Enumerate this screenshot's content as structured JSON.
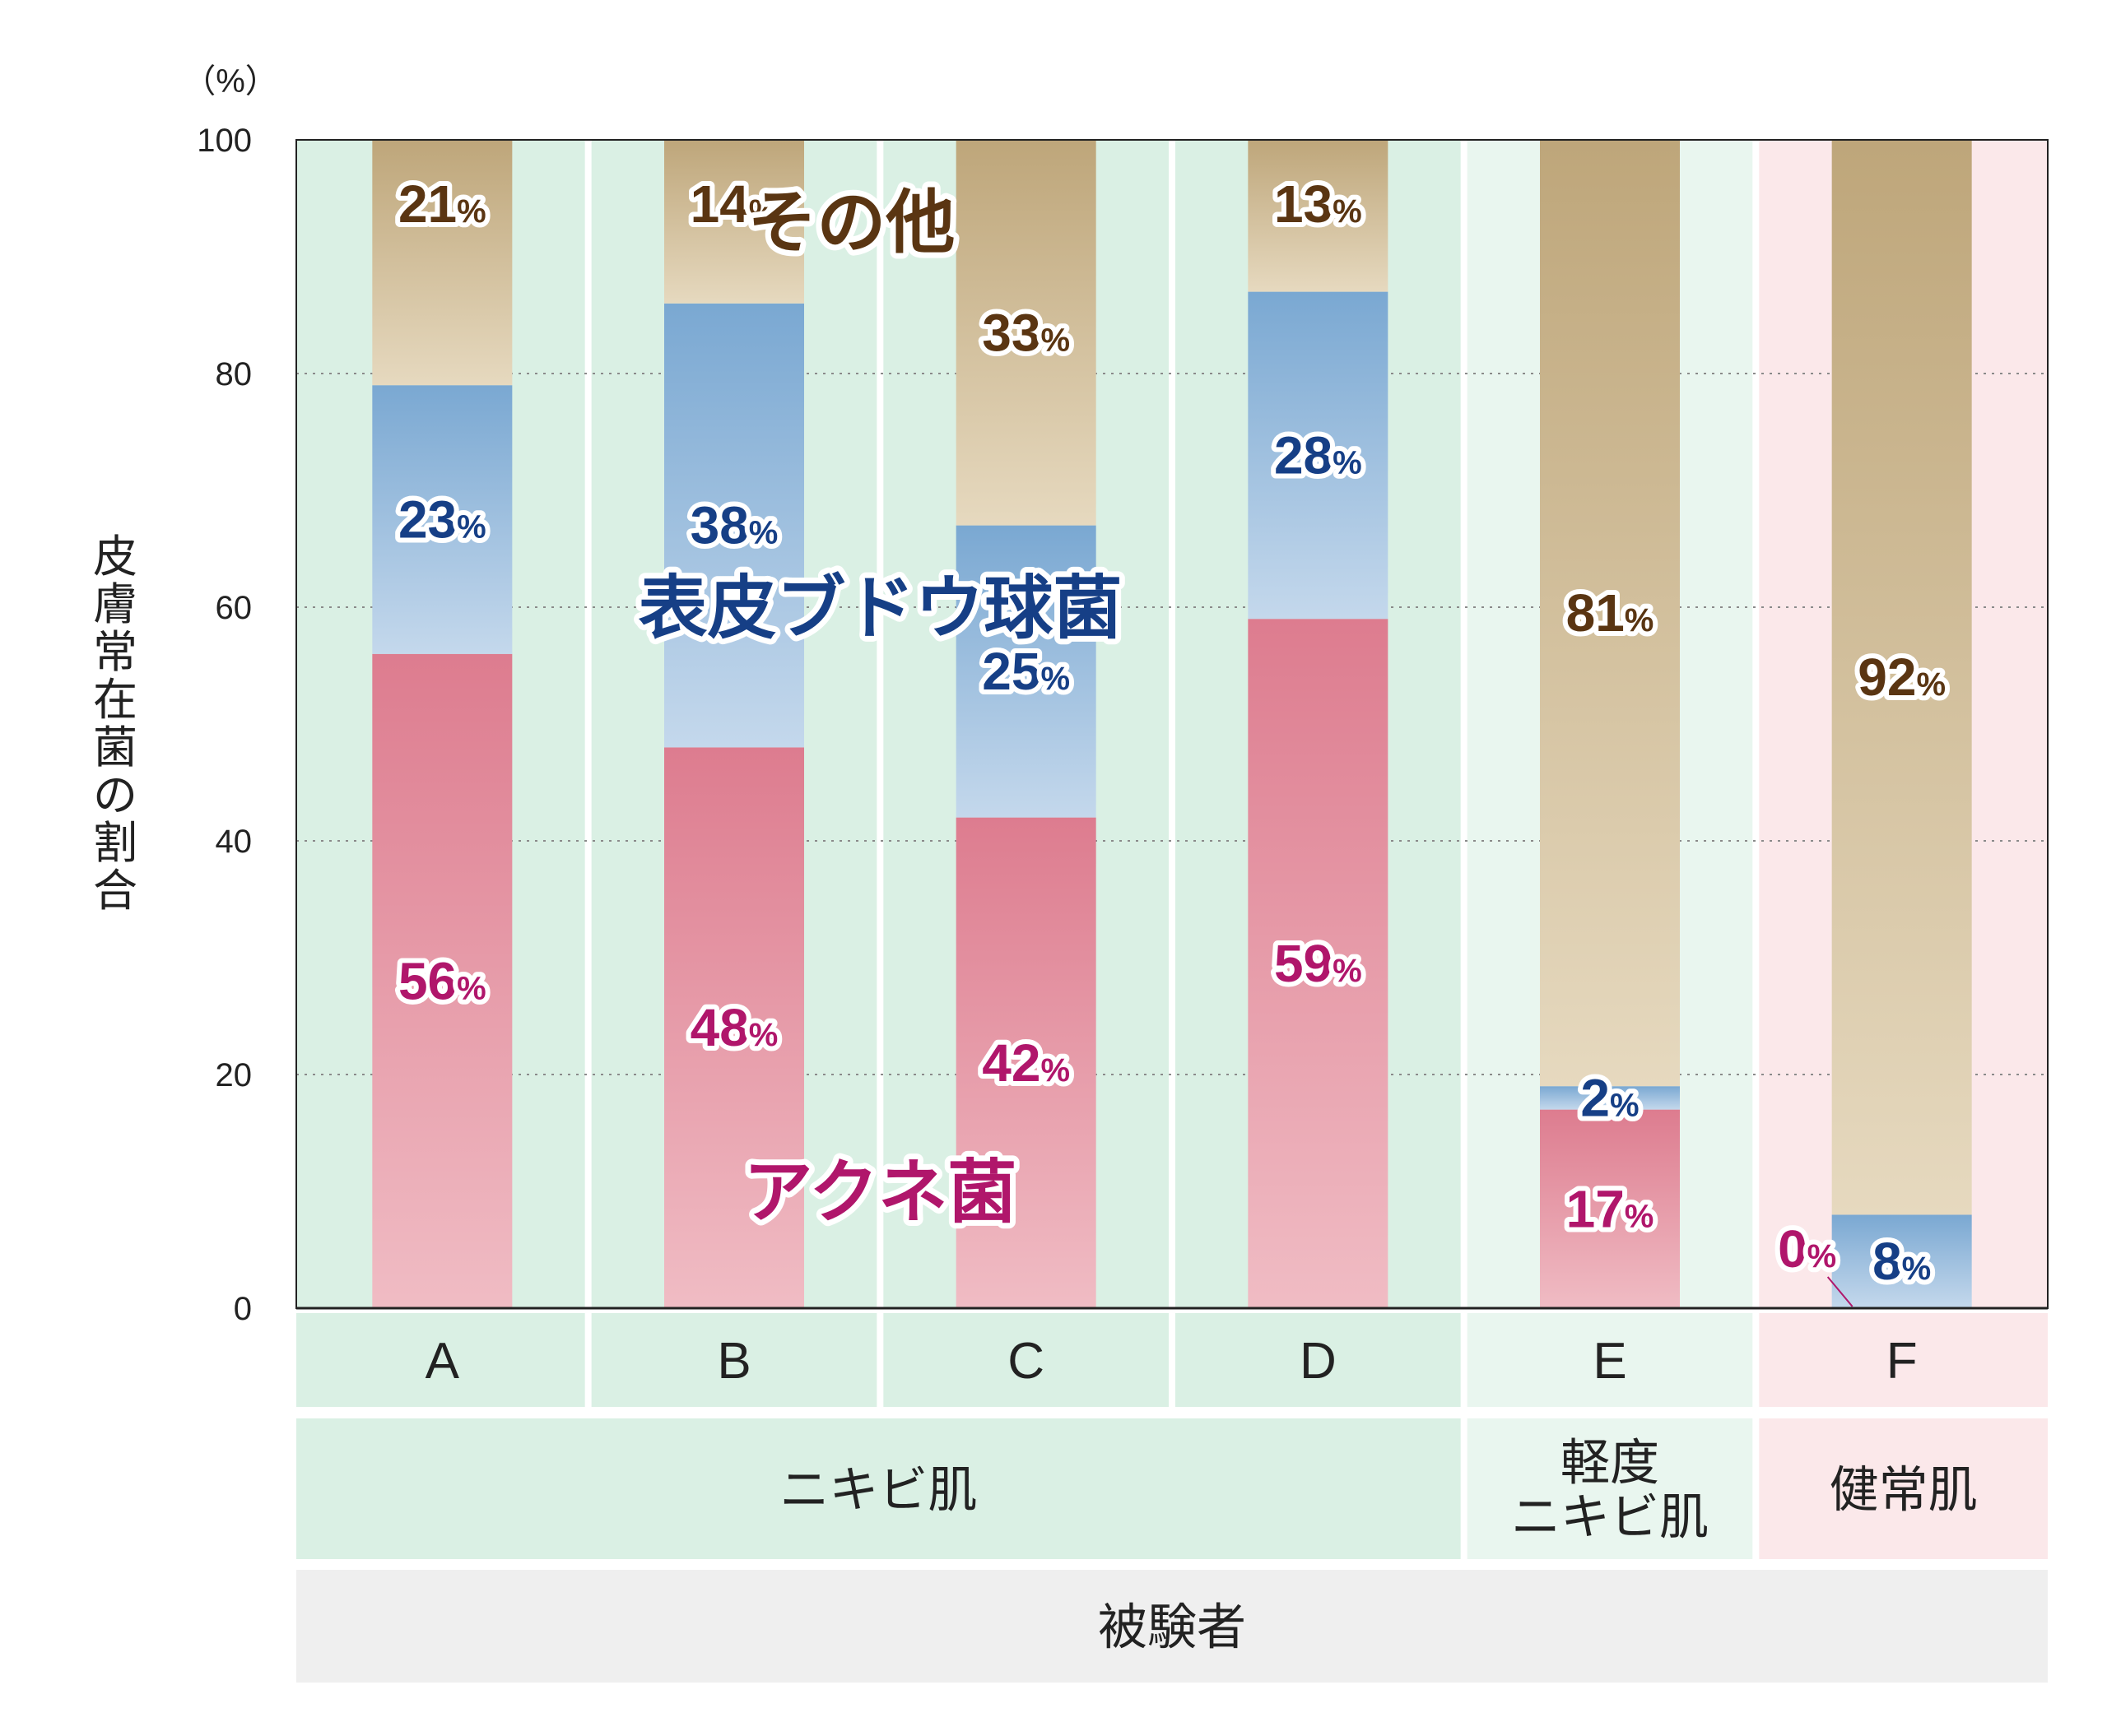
{
  "chart_data": {
    "type": "bar",
    "stacked": true,
    "categories": [
      "A",
      "B",
      "C",
      "D",
      "E",
      "F"
    ],
    "series": [
      {
        "name": "アクネ菌",
        "values": [
          56,
          48,
          42,
          59,
          17,
          0
        ],
        "color": "#e07f94",
        "label_color": "#b0166b",
        "labels": [
          "56",
          "48",
          "42",
          "59",
          "17",
          "0"
        ]
      },
      {
        "name": "表皮ブドウ球菌",
        "values": [
          23,
          38,
          25,
          28,
          2,
          8
        ],
        "color": "#7eaad4",
        "label_color": "#163f86",
        "labels": [
          "23",
          "38",
          "25",
          "28",
          "2",
          "8"
        ]
      },
      {
        "name": "その他",
        "values": [
          21,
          14,
          33,
          13,
          81,
          92
        ],
        "color": "#bfa87d",
        "label_color": "#5a3512",
        "labels": [
          "21",
          "14",
          "33",
          "13",
          "81",
          "92"
        ]
      }
    ],
    "percent_sign": "%",
    "ylabel": "皮膚常在菌の割合",
    "y_unit": "（%）",
    "ylim": [
      0,
      100
    ],
    "yticks": [
      0,
      20,
      40,
      60,
      80,
      100
    ],
    "grid": true,
    "groups": [
      {
        "label_lines": [
          "ニキビ肌"
        ],
        "categories": [
          "A",
          "B",
          "C",
          "D"
        ],
        "bg": "#daf0e4"
      },
      {
        "label_lines": [
          "軽度",
          "ニキビ肌"
        ],
        "categories": [
          "E"
        ],
        "bg": "#e9f6ef"
      },
      {
        "label_lines": [
          "健常肌"
        ],
        "categories": [
          "F"
        ],
        "bg": "#fbe8ea"
      }
    ],
    "xlabel": "被験者",
    "xlabel_bg": "#efefef"
  }
}
